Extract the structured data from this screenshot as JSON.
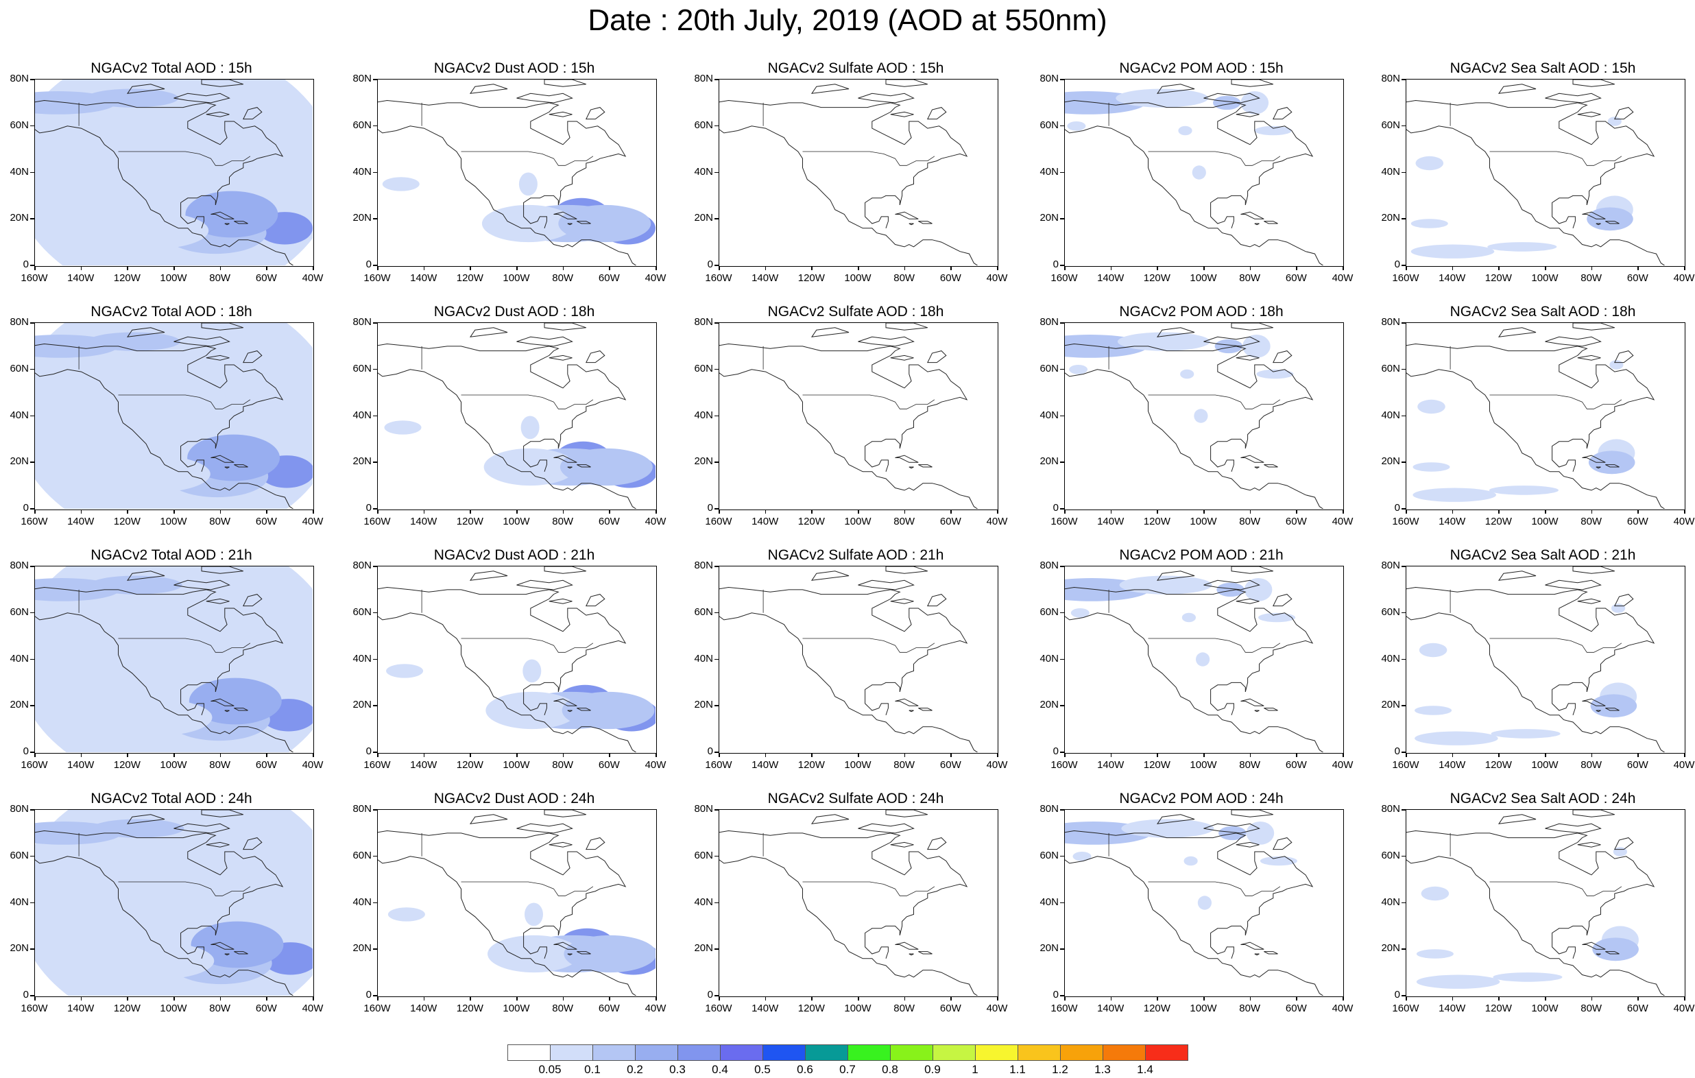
{
  "title": "Date : 20th July, 2019 (AOD at 550nm)",
  "lat_labels": [
    "80N",
    "60N",
    "40N",
    "20N",
    "0"
  ],
  "lon_labels": [
    "160W",
    "140W",
    "120W",
    "100W",
    "80W",
    "60W",
    "40W"
  ],
  "species": [
    {
      "key": "total",
      "color_level": 2
    },
    {
      "key": "dust",
      "color_level": 3
    },
    {
      "key": "sulfate",
      "color_level": 1
    },
    {
      "key": "pom",
      "color_level": 2
    },
    {
      "key": "seasalt",
      "color_level": 1
    }
  ],
  "panels": [
    [
      "NGACv2 Total AOD : 15h",
      "NGACv2 Dust AOD : 15h",
      "NGACv2 Sulfate AOD : 15h",
      "NGACv2 POM AOD : 15h",
      "NGACv2 Sea Salt AOD : 15h"
    ],
    [
      "NGACv2 Total AOD : 18h",
      "NGACv2 Dust AOD : 18h",
      "NGACv2 Sulfate AOD : 18h",
      "NGACv2 POM AOD : 18h",
      "NGACv2 Sea Salt AOD : 18h"
    ],
    [
      "NGACv2 Total AOD : 21h",
      "NGACv2 Dust AOD : 21h",
      "NGACv2 Sulfate AOD : 21h",
      "NGACv2 POM AOD : 21h",
      "NGACv2 Sea Salt AOD : 21h"
    ],
    [
      "NGACv2 Total AOD : 24h",
      "NGACv2 Dust AOD : 24h",
      "NGACv2 Sulfate AOD : 24h",
      "NGACv2 POM AOD : 24h",
      "NGACv2 Sea Salt  AOD : 24h"
    ]
  ],
  "colorbar": {
    "labels": [
      "0.05",
      "0.1",
      "0.2",
      "0.3",
      "0.4",
      "0.5",
      "0.6",
      "0.7",
      "0.8",
      "0.9",
      "1",
      "1.1",
      "1.2",
      "1.3",
      "1.4"
    ],
    "colors": [
      "#ffffff",
      "#d2def9",
      "#b4c6f4",
      "#98aef0",
      "#8195ee",
      "#6a6cef",
      "#1f55f2",
      "#079a97",
      "#38f21f",
      "#88f21a",
      "#c6f542",
      "#f7f52e",
      "#f9c41c",
      "#f7a20a",
      "#f57a0a",
      "#f72d19"
    ]
  }
}
